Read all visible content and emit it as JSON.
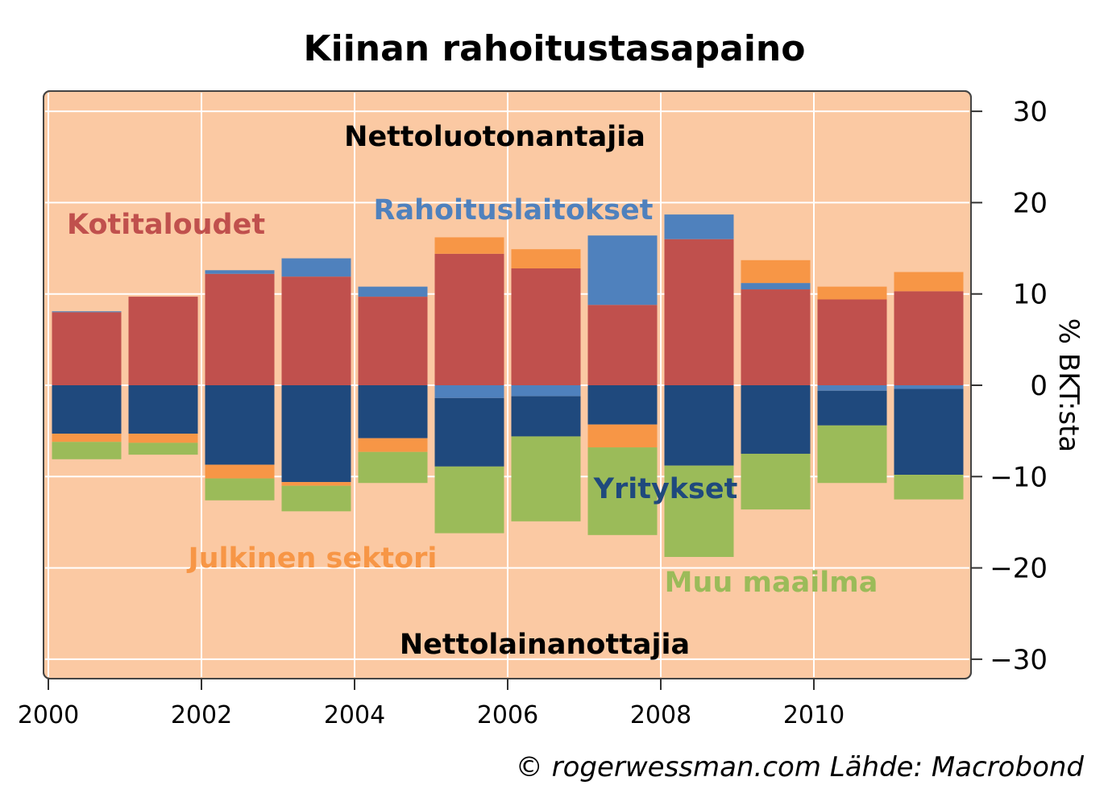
{
  "chart_data": {
    "type": "bar",
    "stacked": true,
    "title": "Kiinan rahoitustasapaino",
    "ylabel": "% BKT:sta",
    "xlabel": "",
    "ylim": [
      -32,
      30.5
    ],
    "xlim": [
      2000,
      2012
    ],
    "x_ticks": [
      "2000",
      "2002",
      "2004",
      "2006",
      "2008",
      "2010"
    ],
    "y_ticks": [
      "30",
      "20",
      "10",
      "0",
      "-10",
      "-20",
      "-30"
    ],
    "y_tick_values": [
      30,
      20,
      10,
      0,
      -10,
      -20,
      -30
    ],
    "y_axis_side": "right",
    "grid": true,
    "background_color": "#FBC9A3",
    "categories": [
      "2000",
      "2001",
      "2002",
      "2003",
      "2004",
      "2005",
      "2006",
      "2007",
      "2008",
      "2009",
      "2010",
      "2011"
    ],
    "series": [
      {
        "name": "Kotitaloudet",
        "color": "#C0504D",
        "values": [
          8.0,
          9.7,
          12.2,
          11.9,
          9.7,
          14.4,
          12.8,
          8.8,
          16.0,
          10.5,
          9.4,
          10.3
        ]
      },
      {
        "name": "Rahoituslaitokset",
        "color": "#4F81BD",
        "values": [
          0.1,
          0.0,
          0.4,
          2.0,
          1.1,
          -1.4,
          -1.2,
          7.6,
          2.7,
          0.7,
          -0.6,
          -0.4
        ]
      },
      {
        "name": "Yritykset",
        "color": "#1F497D",
        "values": [
          -5.3,
          -5.3,
          -8.7,
          -10.6,
          -5.8,
          -7.5,
          -4.4,
          -4.3,
          -8.8,
          -7.5,
          -3.8,
          -9.4
        ]
      },
      {
        "name": "Julkinen sektori",
        "color": "#F79646",
        "values": [
          -0.9,
          -1.0,
          -1.5,
          -0.4,
          -1.5,
          1.8,
          2.1,
          -2.5,
          0.0,
          2.5,
          1.4,
          2.1
        ]
      },
      {
        "name": "Muu maailma",
        "color": "#9BBB59",
        "values": [
          -1.9,
          -1.3,
          -2.4,
          -2.8,
          -3.4,
          -7.3,
          -9.3,
          -9.6,
          -10.0,
          -6.1,
          -6.3,
          -2.7
        ]
      }
    ],
    "annotations": {
      "net_lenders": "Nettoluotonantajia",
      "net_borrowers": "Nettolainanottajia"
    }
  },
  "series_labels": [
    {
      "text": "Kotitaloudet",
      "color": "#C0504D"
    },
    {
      "text": "Rahoituslaitokset",
      "color": "#4F81BD"
    },
    {
      "text": "Yritykset",
      "color": "#1F497D"
    },
    {
      "text": "Julkinen sektori",
      "color": "#F79646"
    },
    {
      "text": "Muu maailma",
      "color": "#9BBB59"
    }
  ],
  "footer": "© rogerwessman.com Lähde: Macrobond"
}
